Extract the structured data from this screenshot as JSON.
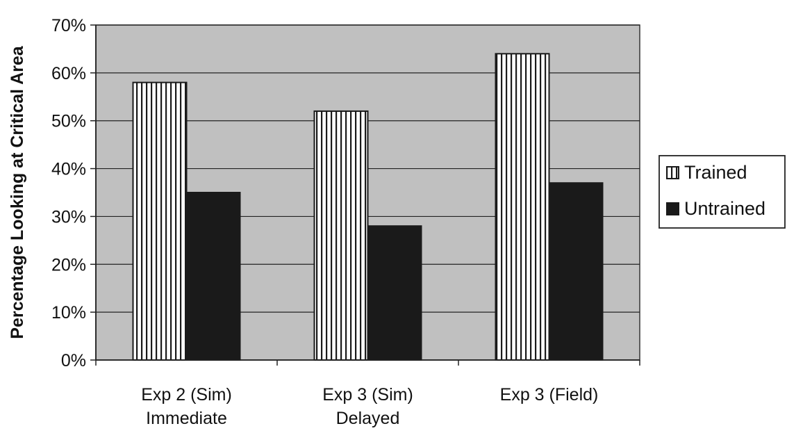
{
  "chart_data": {
    "type": "bar",
    "title": "",
    "xlabel": "",
    "ylabel": "Percentage Looking at Critical Area",
    "categories": [
      [
        "Exp 2 (Sim)",
        "Immediate"
      ],
      [
        "Exp 3 (Sim)",
        "Delayed"
      ],
      [
        "Exp 3 (Field)"
      ]
    ],
    "series": [
      {
        "name": "Trained",
        "values": [
          58,
          52,
          64
        ],
        "pattern": "vertical-stripes"
      },
      {
        "name": "Untrained",
        "values": [
          35,
          28,
          37
        ],
        "color": "#1a1a1a"
      }
    ],
    "ylim": [
      0,
      70
    ],
    "yticks": [
      0,
      10,
      20,
      30,
      40,
      50,
      60,
      70
    ],
    "ytick_format": "%",
    "grid": true,
    "plot_background": "#c0c0c0",
    "legend_position": "right"
  }
}
